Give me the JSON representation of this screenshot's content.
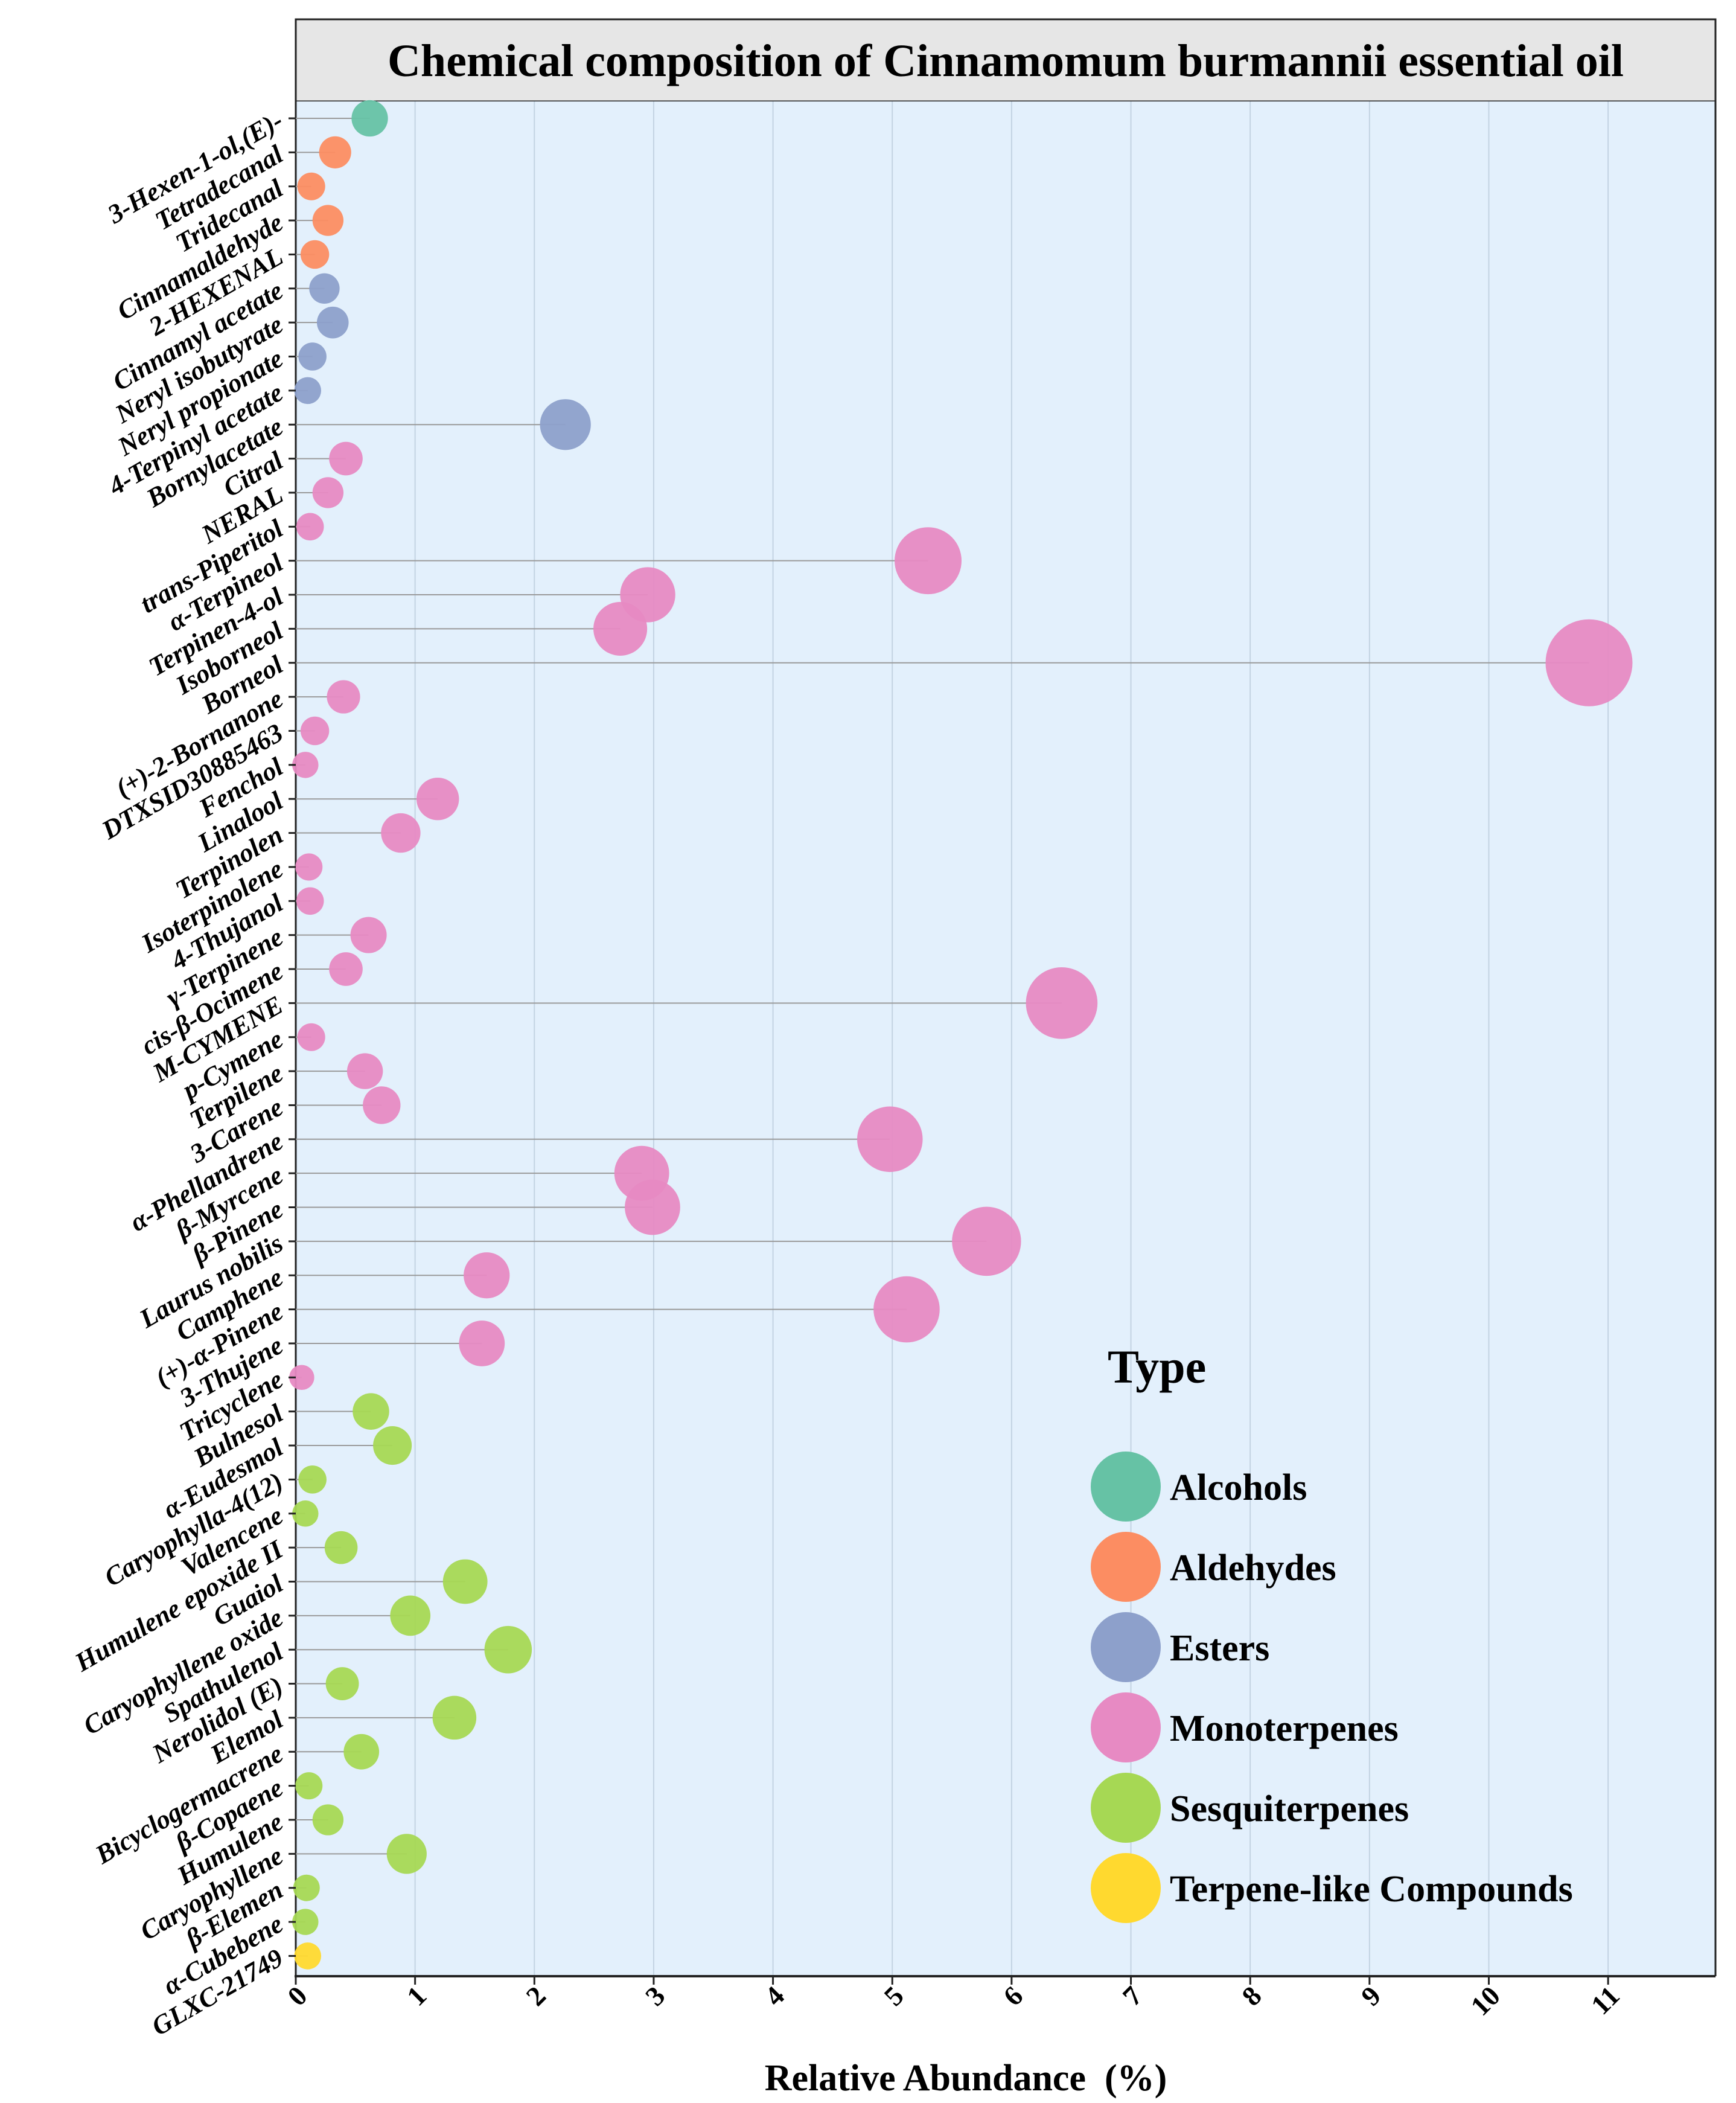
{
  "chart_data": {
    "type": "scatter",
    "title": "Chemical composition of Cinnamomum burmannii essential oil",
    "xlabel": "Relative Abundance  (%)",
    "ylabel": "",
    "xlim": [
      0,
      11.9
    ],
    "xticks": [
      0,
      1,
      2,
      3,
      4,
      5,
      6,
      7,
      8,
      9,
      10,
      11
    ],
    "grid": true,
    "legend": {
      "title": "Type",
      "position": "bottom-right",
      "entries": [
        {
          "name": "Alcohols",
          "color": "#66c2a5"
        },
        {
          "name": "Aldehydes",
          "color": "#fc8d62"
        },
        {
          "name": "Esters",
          "color": "#8da0cb"
        },
        {
          "name": "Monoterpenes",
          "color": "#e78ac3"
        },
        {
          "name": "Sesquiterpenes",
          "color": "#a6d854"
        },
        {
          "name": "Terpene-like Compounds",
          "color": "#ffd92f"
        }
      ]
    },
    "points": [
      {
        "name": "3-Hexen-1-ol,(E)-",
        "value": 0.62,
        "type": "Alcohols"
      },
      {
        "name": "Tetradecanal",
        "value": 0.33,
        "type": "Aldehydes"
      },
      {
        "name": "Tridecanal",
        "value": 0.13,
        "type": "Aldehydes"
      },
      {
        "name": "Cinnamaldehyde",
        "value": 0.27,
        "type": "Aldehydes"
      },
      {
        "name": "2-HEXENAL",
        "value": 0.16,
        "type": "Aldehydes"
      },
      {
        "name": "Cinnamyl acetate",
        "value": 0.24,
        "type": "Esters"
      },
      {
        "name": "Neryl isobutyrate",
        "value": 0.31,
        "type": "Esters"
      },
      {
        "name": "Neryl propionate",
        "value": 0.14,
        "type": "Esters"
      },
      {
        "name": "4-Terpinyl acetate",
        "value": 0.1,
        "type": "Esters"
      },
      {
        "name": "Bornylacetate",
        "value": 2.26,
        "type": "Esters"
      },
      {
        "name": "Citral",
        "value": 0.42,
        "type": "Monoterpenes"
      },
      {
        "name": "NERAL",
        "value": 0.27,
        "type": "Monoterpenes"
      },
      {
        "name": "trans-Piperitol",
        "value": 0.12,
        "type": "Monoterpenes"
      },
      {
        "name": "α-Terpineol",
        "value": 5.3,
        "type": "Monoterpenes"
      },
      {
        "name": "Terpinen-4-ol",
        "value": 2.95,
        "type": "Monoterpenes"
      },
      {
        "name": "Isoborneol",
        "value": 2.72,
        "type": "Monoterpenes"
      },
      {
        "name": "Borneol",
        "value": 10.84,
        "type": "Monoterpenes"
      },
      {
        "name": "(+)-2-Bornanone",
        "value": 0.4,
        "type": "Monoterpenes"
      },
      {
        "name": "DTXSID30885463",
        "value": 0.16,
        "type": "Monoterpenes"
      },
      {
        "name": "Fenchol",
        "value": 0.08,
        "type": "Monoterpenes"
      },
      {
        "name": "Linalool",
        "value": 1.19,
        "type": "Monoterpenes"
      },
      {
        "name": "Terpinolen",
        "value": 0.88,
        "type": "Monoterpenes"
      },
      {
        "name": "Isoterpinolene",
        "value": 0.11,
        "type": "Monoterpenes"
      },
      {
        "name": "4-Thujanol",
        "value": 0.12,
        "type": "Monoterpenes"
      },
      {
        "name": "γ-Terpinene",
        "value": 0.61,
        "type": "Monoterpenes"
      },
      {
        "name": "cis-β-Ocimene",
        "value": 0.42,
        "type": "Monoterpenes"
      },
      {
        "name": "M-CYMENE",
        "value": 6.42,
        "type": "Monoterpenes"
      },
      {
        "name": "p-Cymene",
        "value": 0.13,
        "type": "Monoterpenes"
      },
      {
        "name": "Terpilene",
        "value": 0.58,
        "type": "Monoterpenes"
      },
      {
        "name": "3-Carene",
        "value": 0.72,
        "type": "Monoterpenes"
      },
      {
        "name": "α-Phellandrene",
        "value": 4.98,
        "type": "Monoterpenes"
      },
      {
        "name": "β-Myrcene",
        "value": 2.9,
        "type": "Monoterpenes"
      },
      {
        "name": "β-Pinene",
        "value": 2.99,
        "type": "Monoterpenes"
      },
      {
        "name": "Laurus nobilis",
        "value": 5.79,
        "type": "Monoterpenes"
      },
      {
        "name": "Camphene",
        "value": 1.6,
        "type": "Monoterpenes"
      },
      {
        "name": "(+)-α-Pinene",
        "value": 5.12,
        "type": "Monoterpenes"
      },
      {
        "name": "3-Thujene",
        "value": 1.56,
        "type": "Monoterpenes"
      },
      {
        "name": "Tricyclene",
        "value": 0.05,
        "type": "Monoterpenes"
      },
      {
        "name": "Bulnesol",
        "value": 0.63,
        "type": "Sesquiterpenes"
      },
      {
        "name": "α-Eudesmol",
        "value": 0.81,
        "type": "Sesquiterpenes"
      },
      {
        "name": "Caryophylla-4(12)",
        "value": 0.14,
        "type": "Sesquiterpenes"
      },
      {
        "name": "Valencene",
        "value": 0.08,
        "type": "Sesquiterpenes"
      },
      {
        "name": "Humulene epoxide II",
        "value": 0.38,
        "type": "Sesquiterpenes"
      },
      {
        "name": "Guaiol",
        "value": 1.42,
        "type": "Sesquiterpenes"
      },
      {
        "name": "Caryophyllene oxide",
        "value": 0.96,
        "type": "Sesquiterpenes"
      },
      {
        "name": "Spathulenol",
        "value": 1.78,
        "type": "Sesquiterpenes"
      },
      {
        "name": "Nerolidol (E)",
        "value": 0.39,
        "type": "Sesquiterpenes"
      },
      {
        "name": "Elemol",
        "value": 1.33,
        "type": "Sesquiterpenes"
      },
      {
        "name": "Bicyclogermacrene",
        "value": 0.55,
        "type": "Sesquiterpenes"
      },
      {
        "name": "β-Copaene",
        "value": 0.11,
        "type": "Sesquiterpenes"
      },
      {
        "name": "Humulene",
        "value": 0.27,
        "type": "Sesquiterpenes"
      },
      {
        "name": "Caryophyllene",
        "value": 0.93,
        "type": "Sesquiterpenes"
      },
      {
        "name": "β-Elemen",
        "value": 0.09,
        "type": "Sesquiterpenes"
      },
      {
        "name": "α-Cubebene",
        "value": 0.08,
        "type": "Sesquiterpenes"
      },
      {
        "name": "GLXC-21749",
        "value": 0.1,
        "type": "Terpene-like Compounds"
      }
    ]
  }
}
